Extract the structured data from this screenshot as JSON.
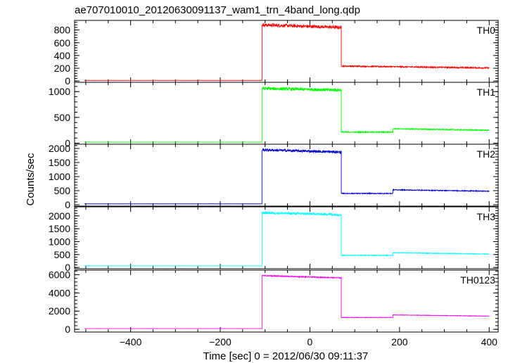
{
  "title": "ae707010010_20120630091137_wam1_trn_4band_long.qdp",
  "chart_data": {
    "type": "line",
    "title": "ae707010010_20120630091137_wam1_trn_4band_long.qdp",
    "xlabel": "Time [sec] 0 = 2012/06/30 09:11:37",
    "ylabel": "Counts/sec",
    "xlim": [
      -525,
      420
    ],
    "xticks": [
      -400,
      -200,
      0,
      200,
      400
    ],
    "x_tick_labels": [
      "−400",
      "−200",
      "0",
      "200",
      "400"
    ],
    "legend": "none",
    "grid": false,
    "panels": [
      {
        "label": "TH0",
        "color": "#ff0000",
        "ylim": [
          -20,
          950
        ],
        "yticks": [
          0,
          200,
          400,
          600,
          800
        ],
        "y_tick_labels": [
          "0",
          "200",
          "400",
          "600",
          "800"
        ],
        "segments": [
          {
            "x_start": -503,
            "x_end": -107,
            "level": 10,
            "noise": 1
          },
          {
            "x_start": -107,
            "x_end": 70,
            "level": 880,
            "end_level": 840,
            "noise": 25
          },
          {
            "x_start": 70,
            "x_end": 400,
            "level": 235,
            "end_level": 205,
            "noise": 10
          }
        ]
      },
      {
        "label": "TH1",
        "color": "#00ff00",
        "ylim": [
          -20,
          1180
        ],
        "yticks": [
          0,
          500,
          1000
        ],
        "y_tick_labels": [
          "0",
          "500",
          "1000"
        ],
        "segments": [
          {
            "x_start": -503,
            "x_end": -107,
            "level": 20,
            "noise": 1
          },
          {
            "x_start": -107,
            "x_end": 70,
            "level": 1060,
            "end_level": 1030,
            "noise": 30
          },
          {
            "x_start": 70,
            "x_end": 185,
            "level": 215,
            "noise": 10
          },
          {
            "x_start": 185,
            "x_end": 400,
            "level": 280,
            "end_level": 250,
            "noise": 10
          }
        ]
      },
      {
        "label": "TH2",
        "color": "#0000cc",
        "ylim": [
          -50,
          2150
        ],
        "yticks": [
          0,
          500,
          1000,
          1500,
          2000
        ],
        "y_tick_labels": [
          "0",
          "500",
          "1000",
          "1500",
          "2000"
        ],
        "segments": [
          {
            "x_start": -503,
            "x_end": -107,
            "level": 30,
            "noise": 2
          },
          {
            "x_start": -107,
            "x_end": 70,
            "level": 1950,
            "end_level": 1870,
            "noise": 45
          },
          {
            "x_start": 70,
            "x_end": 185,
            "level": 400,
            "noise": 15
          },
          {
            "x_start": 185,
            "x_end": 400,
            "level": 530,
            "end_level": 480,
            "noise": 15
          }
        ]
      },
      {
        "label": "TH3",
        "color": "#00ffff",
        "ylim": [
          -50,
          2350
        ],
        "yticks": [
          0,
          500,
          1000,
          1500,
          2000
        ],
        "y_tick_labels": [
          "0",
          "500",
          "1000",
          "1500",
          "2000"
        ],
        "segments": [
          {
            "x_start": -503,
            "x_end": -107,
            "level": 60,
            "noise": 2
          },
          {
            "x_start": -107,
            "x_end": 70,
            "level": 2120,
            "end_level": 2050,
            "noise": 45
          },
          {
            "x_start": 70,
            "x_end": 185,
            "level": 470,
            "noise": 15
          },
          {
            "x_start": 185,
            "x_end": 400,
            "level": 570,
            "end_level": 520,
            "noise": 15
          }
        ]
      },
      {
        "label": "TH0123",
        "color": "#ee00ee",
        "ylim": [
          -300,
          6500
        ],
        "yticks": [
          0,
          2000,
          4000,
          6000
        ],
        "y_tick_labels": [
          "0",
          "2000",
          "4000",
          "6000"
        ],
        "segments": [
          {
            "x_start": -503,
            "x_end": -107,
            "level": 80,
            "noise": 3
          },
          {
            "x_start": -107,
            "x_end": 70,
            "level": 5900,
            "end_level": 5650,
            "noise": 60
          },
          {
            "x_start": 70,
            "x_end": 185,
            "level": 1300,
            "noise": 25
          },
          {
            "x_start": 185,
            "x_end": 400,
            "level": 1580,
            "end_level": 1450,
            "noise": 25
          }
        ]
      }
    ]
  }
}
